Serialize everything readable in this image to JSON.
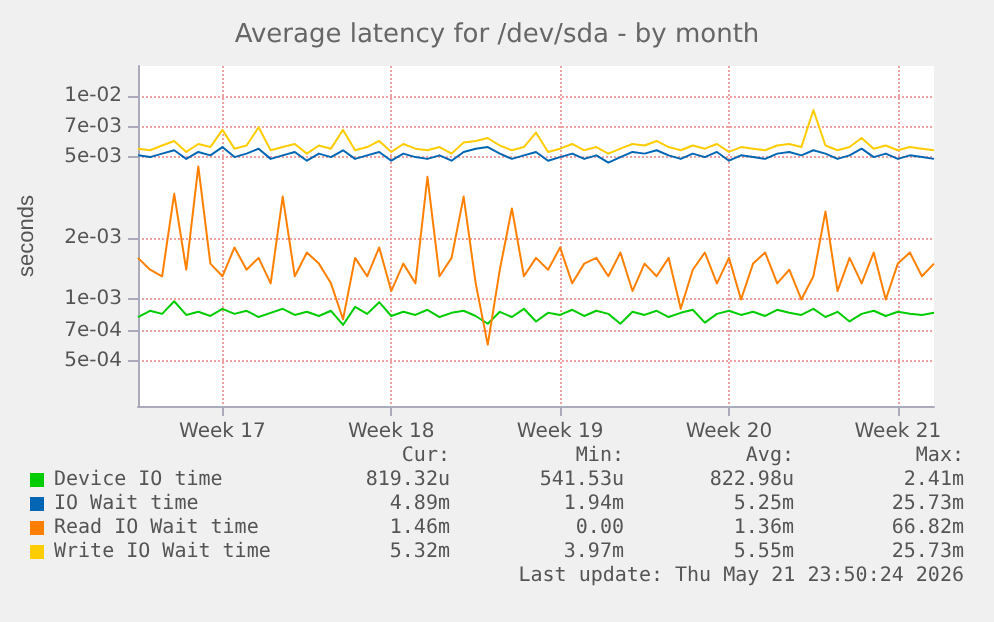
{
  "chart_data": {
    "type": "line",
    "title": "Average latency for /dev/sda - by month",
    "ylabel": "seconds",
    "log": "y",
    "grid": true,
    "legend": "bottom",
    "marker": "none",
    "line_style": "solid",
    "categories": [
      null,
      null,
      null,
      null,
      null,
      null,
      null,
      "Week 17",
      null,
      null,
      null,
      null,
      null,
      null,
      null,
      null,
      null,
      null,
      null,
      null,
      null,
      "Week 18",
      null,
      null,
      null,
      null,
      null,
      null,
      null,
      null,
      null,
      null,
      null,
      null,
      null,
      "Week 19",
      null,
      null,
      null,
      null,
      null,
      null,
      null,
      null,
      null,
      null,
      null,
      null,
      null,
      "Week 20",
      null,
      null,
      null,
      null,
      null,
      null,
      null,
      null,
      null,
      null,
      null,
      null,
      null,
      "Week 21",
      null,
      null,
      null
    ],
    "ylim": [
      0.0003,
      0.014
    ],
    "yticks": [
      {
        "value": 0.0005,
        "label": "5e-04"
      },
      {
        "value": 0.0007,
        "label": "7e-04"
      },
      {
        "value": 0.001,
        "label": "1e-03"
      },
      {
        "value": 0.002,
        "label": "2e-03"
      },
      {
        "value": 0.005,
        "label": "5e-03"
      },
      {
        "value": 0.007,
        "label": "7e-03"
      },
      {
        "value": 0.01,
        "label": "1e-02"
      }
    ],
    "series": [
      {
        "name": "Device IO time",
        "color": "#00cc00",
        "values": [
          0.00082,
          0.00088,
          0.00085,
          0.00098,
          0.00084,
          0.00087,
          0.00083,
          0.0009,
          0.00085,
          0.00088,
          0.00082,
          0.00086,
          0.0009,
          0.00084,
          0.00087,
          0.00083,
          0.00088,
          0.00075,
          0.00092,
          0.00085,
          0.00097,
          0.00083,
          0.00087,
          0.00084,
          0.00089,
          0.00082,
          0.00086,
          0.00088,
          0.00083,
          0.00076,
          0.00087,
          0.00082,
          0.0009,
          0.00078,
          0.00086,
          0.00084,
          0.00089,
          0.00083,
          0.00088,
          0.00085,
          0.00076,
          0.00087,
          0.00084,
          0.00088,
          0.00082,
          0.00086,
          0.00089,
          0.00077,
          0.00085,
          0.00088,
          0.00084,
          0.00087,
          0.00083,
          0.00089,
          0.00086,
          0.00084,
          0.0009,
          0.00082,
          0.00087,
          0.00078,
          0.00085,
          0.00088,
          0.00083,
          0.00087,
          0.00085,
          0.00084,
          0.00086
        ]
      },
      {
        "name": "IO Wait time",
        "color": "#0066b3",
        "values": [
          0.0051,
          0.005,
          0.0052,
          0.0054,
          0.0049,
          0.0053,
          0.0051,
          0.0056,
          0.005,
          0.0052,
          0.0055,
          0.0049,
          0.0051,
          0.0053,
          0.0048,
          0.0052,
          0.005,
          0.0054,
          0.0049,
          0.0051,
          0.0053,
          0.0048,
          0.0052,
          0.005,
          0.0049,
          0.0051,
          0.0048,
          0.0053,
          0.0055,
          0.0056,
          0.0052,
          0.0049,
          0.0051,
          0.0053,
          0.0048,
          0.005,
          0.0052,
          0.0049,
          0.0051,
          0.0047,
          0.005,
          0.0053,
          0.0052,
          0.0054,
          0.0051,
          0.0049,
          0.0052,
          0.005,
          0.0053,
          0.0048,
          0.0051,
          0.005,
          0.0049,
          0.0052,
          0.0053,
          0.0051,
          0.0054,
          0.0052,
          0.0049,
          0.0051,
          0.0055,
          0.005,
          0.0052,
          0.0049,
          0.0051,
          0.005,
          0.0049
        ]
      },
      {
        "name": "Read IO Wait time",
        "color": "#ff8000",
        "values": [
          0.0016,
          0.0014,
          0.0013,
          0.0033,
          0.0014,
          0.0045,
          0.0015,
          0.0013,
          0.0018,
          0.0014,
          0.0016,
          0.0012,
          0.0032,
          0.0013,
          0.0017,
          0.0015,
          0.0012,
          0.0008,
          0.0016,
          0.0013,
          0.0018,
          0.0011,
          0.0015,
          0.0012,
          0.004,
          0.0013,
          0.0016,
          0.0032,
          0.0012,
          0.0006,
          0.0014,
          0.0028,
          0.0013,
          0.0016,
          0.0014,
          0.0018,
          0.0012,
          0.0015,
          0.0016,
          0.0013,
          0.0017,
          0.0011,
          0.0015,
          0.0013,
          0.0016,
          0.0009,
          0.0014,
          0.0017,
          0.0012,
          0.0016,
          0.001,
          0.0015,
          0.0017,
          0.0012,
          0.0014,
          0.001,
          0.0013,
          0.0027,
          0.0011,
          0.0016,
          0.0012,
          0.0017,
          0.001,
          0.0015,
          0.0017,
          0.0013,
          0.0015
        ]
      },
      {
        "name": "Write IO Wait time",
        "color": "#ffcc00",
        "values": [
          0.0055,
          0.0054,
          0.0057,
          0.006,
          0.0053,
          0.0058,
          0.0056,
          0.0068,
          0.0055,
          0.0057,
          0.007,
          0.0054,
          0.0056,
          0.0058,
          0.0052,
          0.0057,
          0.0055,
          0.0068,
          0.0054,
          0.0056,
          0.006,
          0.0053,
          0.0058,
          0.0055,
          0.0054,
          0.0056,
          0.0052,
          0.0059,
          0.006,
          0.0062,
          0.0057,
          0.0054,
          0.0056,
          0.0066,
          0.0053,
          0.0055,
          0.0058,
          0.0054,
          0.0056,
          0.0052,
          0.0055,
          0.0058,
          0.0057,
          0.006,
          0.0056,
          0.0054,
          0.0057,
          0.0055,
          0.0058,
          0.0053,
          0.0056,
          0.0055,
          0.0054,
          0.0057,
          0.0058,
          0.0056,
          0.0085,
          0.0057,
          0.0054,
          0.0056,
          0.0062,
          0.0055,
          0.0057,
          0.0054,
          0.0056,
          0.0055,
          0.0054
        ]
      }
    ],
    "annotations": [
      "Cur:",
      "Min:",
      "Avg:",
      "Max:",
      "819.32u",
      "541.53u",
      "822.98u",
      "2.41m",
      "4.89m",
      "1.94m",
      "5.25m",
      "25.73m",
      "1.46m",
      "0.00",
      "1.36m",
      "66.82m",
      "5.32m",
      "3.97m",
      "5.55m",
      "25.73m",
      "Last update: Thu May 21 23:50:24 2026"
    ]
  }
}
